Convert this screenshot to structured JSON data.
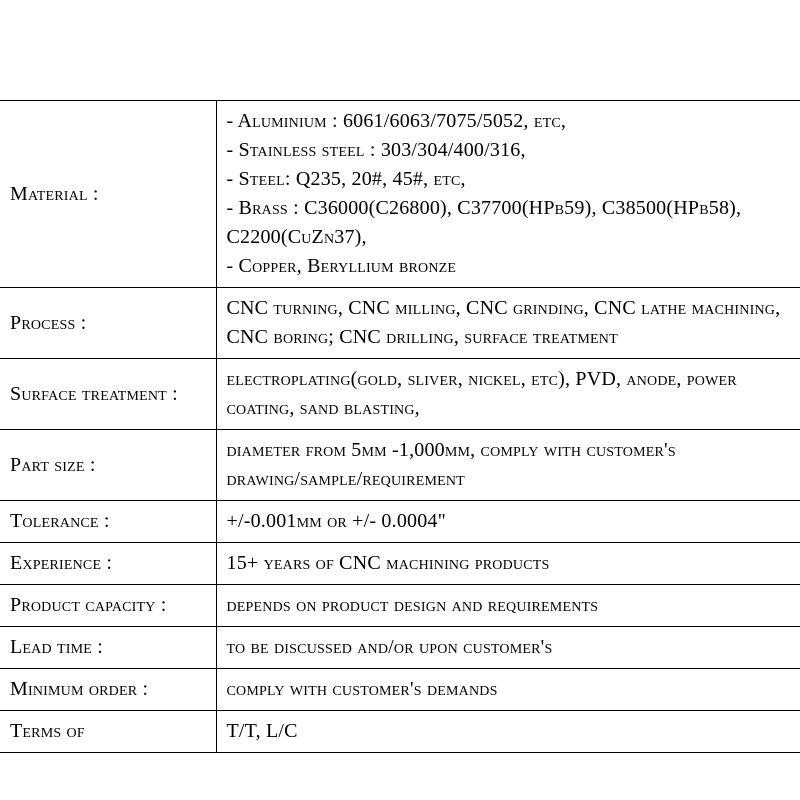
{
  "colors": {
    "text": "#000000",
    "border": "#000000",
    "background": "#ffffff"
  },
  "typography": {
    "font_family": "Copperplate",
    "font_size_pt": 15,
    "font_variant": "small-caps"
  },
  "table": {
    "rows": [
      {
        "label": "Material :",
        "value_lines": [
          "- Aluminium : 6061/6063/7075/5052, etc,",
          "- Stainless steel : 303/304/400/316,",
          "- Steel: Q235, 20#, 45#, etc,",
          "- Brass : C36000(C26800), C37700(HPb59), C38500(HPb58), C2200(CuZn37),",
          "- Copper, Beryllium bronze"
        ]
      },
      {
        "label": "Process :",
        "value": "CNC turning, CNC milling, CNC grinding, CNC lathe machining, CNC boring; CNC drilling, surface treatment"
      },
      {
        "label": "Surface treatment :",
        "value": "electroplating(gold, sliver, nickel, etc), PVD, anode, power coating, sand blasting,"
      },
      {
        "label": "Part size :",
        "value": "diameter from 5mm -1,000mm, comply with customer's drawing/sample/requirement"
      },
      {
        "label": "Tolerance :",
        "value": "+/-0.001mm or +/- 0.0004\""
      },
      {
        "label": "Experience :",
        "value": "15+ years of CNC machining products"
      },
      {
        "label": "Product capacity :",
        "value": "depends on product design and requirements"
      },
      {
        "label": "Lead time :",
        "value": "to be discussed and/or upon customer's"
      },
      {
        "label": "Minimum order :",
        "value": "comply with customer's demands"
      },
      {
        "label": "Terms of",
        "value": "T/T, L/C"
      }
    ]
  }
}
